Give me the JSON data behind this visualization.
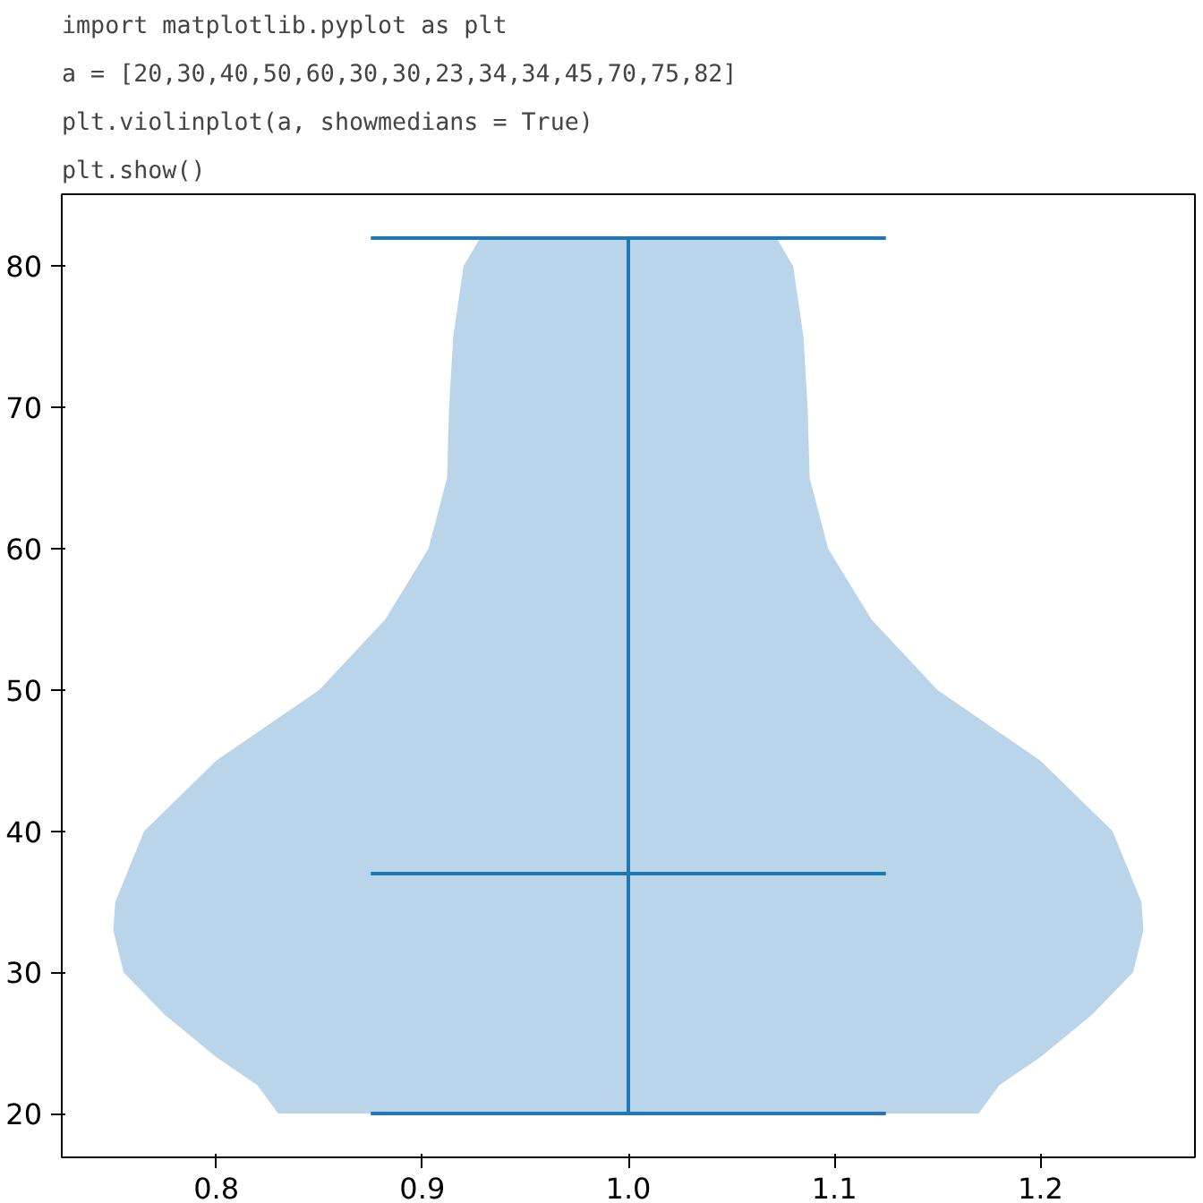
{
  "chart_data": {
    "type": "line",
    "annotations": [
      "import matplotlib.pyplot as plt",
      "a = [20,30,40,50,60,30,30,23,34,34,45,70,75,82]",
      "plt.violinplot(a, showmedians = True)",
      "plt.show()"
    ],
    "xlim": [
      0.725,
      1.275
    ],
    "ylim": [
      16.9,
      85.1
    ],
    "xticks": [
      0.8,
      0.9,
      {
        "value": 1,
        "label": "1.0"
      },
      1.1,
      1.2
    ],
    "yticks": [
      20,
      30,
      40,
      50,
      60,
      70,
      80
    ],
    "grid": false,
    "series": [
      {
        "type": "area",
        "color": "#bad4e9",
        "x": [
          1.17,
          1.18,
          1.2,
          1.225,
          1.245,
          1.25,
          1.249,
          1.235,
          1.2,
          1.15,
          1.118,
          1.097,
          1.088,
          1.087,
          1.085,
          1.08,
          1.072,
          0.928,
          0.92,
          0.915,
          0.913,
          0.912,
          0.903,
          0.882,
          0.85,
          0.8,
          0.765,
          0.751,
          0.75,
          0.755,
          0.775,
          0.8,
          0.82,
          0.83
        ],
        "values": [
          20,
          22,
          24,
          27,
          30,
          33,
          35,
          40,
          45,
          50,
          55,
          60,
          65,
          70,
          75,
          80,
          82,
          82,
          80,
          75,
          70,
          65,
          60,
          55,
          50,
          45,
          40,
          35,
          33,
          30,
          27,
          24,
          22,
          20
        ]
      },
      {
        "color": "#1f77b4",
        "x": [
          0.875,
          1.125
        ],
        "values": [
          82,
          82
        ]
      },
      {
        "color": "#1f77b4",
        "x": [
          0.875,
          1.125
        ],
        "values": [
          20,
          20
        ]
      },
      {
        "color": "#1f77b4",
        "x": [
          0.875,
          1.125
        ],
        "values": [
          37,
          37
        ]
      },
      {
        "color": "#1f77b4",
        "x": [
          1.0,
          1.0
        ],
        "values": [
          20,
          82
        ]
      }
    ]
  }
}
